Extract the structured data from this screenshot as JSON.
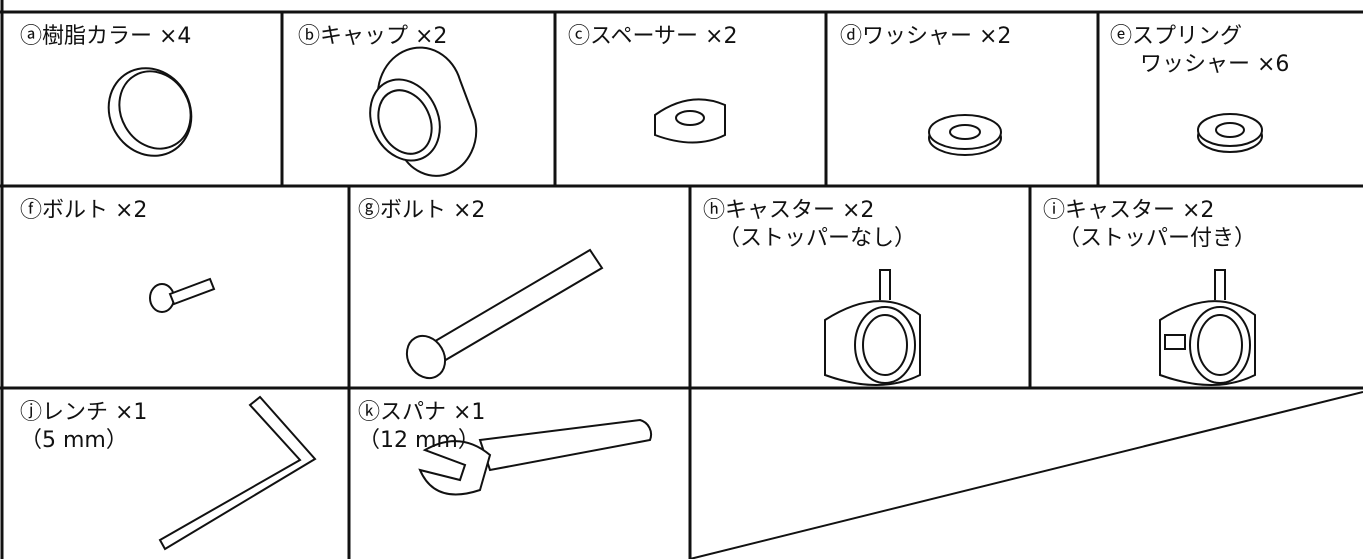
{
  "parts": [
    {
      "lines": [
        "ⓐ樹脂カラー ×4"
      ]
    },
    {
      "lines": [
        "ⓑキャップ ×2"
      ]
    },
    {
      "lines": [
        "ⓒスペーサー ×2"
      ]
    },
    {
      "lines": [
        "ⓓワッシャー ×2"
      ]
    },
    {
      "lines": [
        "ⓔスプリング",
        "ワッシャー ×6"
      ]
    },
    {
      "lines": [
        "ⓕボルト ×2"
      ]
    },
    {
      "lines": [
        "ⓖボルト ×2"
      ]
    },
    {
      "lines": [
        "ⓗキャスター ×2",
        "（ストッパーなし）"
      ]
    },
    {
      "lines": [
        "ⓘキャスター ×2",
        "（ストッパー付き）"
      ]
    },
    {
      "lines": [
        "ⓙレンチ ×1",
        "（5 mm）"
      ]
    },
    {
      "lines": [
        "ⓚスパナ ×1",
        "（12 mm）"
      ]
    }
  ]
}
